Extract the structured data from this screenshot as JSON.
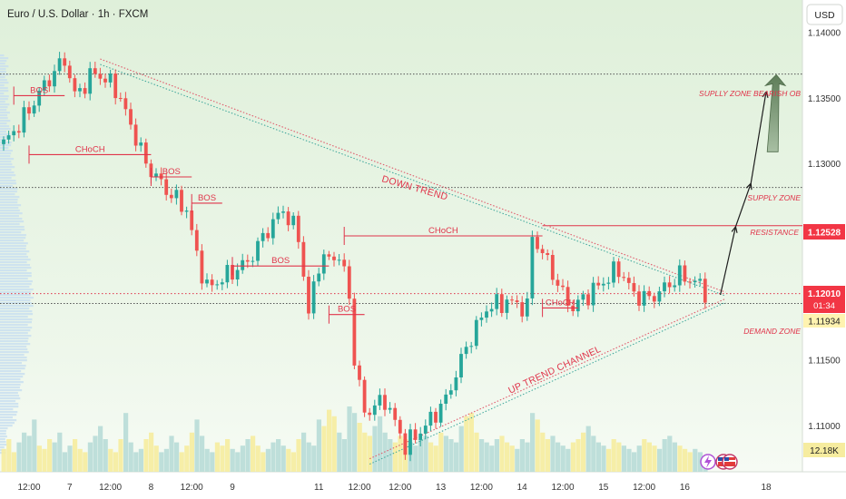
{
  "header": {
    "symbol_title": "Euro / U.S. Dollar · 1h · FXCM"
  },
  "axis": {
    "currency": "USD"
  },
  "colors": {
    "bg_top": "#e3f1df",
    "bg_bottom": "#f3f9f1",
    "up": "#26a69a",
    "down": "#ef5350",
    "structure": "#e0344a",
    "volume_warm": "#f6ec9f",
    "volume_cool": "#b8dcd7",
    "profile": "#c9dff0",
    "price_tag": "#f23645",
    "arrow_fill": "#6f8f6a"
  },
  "badges": {
    "current_price": "1.12010",
    "countdown": "01:34",
    "demand_price": "1.11934",
    "resistance_price": "1.12528",
    "volume": "12.18K"
  },
  "chart_data": {
    "type": "candlestick",
    "title": "Euro / U.S. Dollar · 1h · FXCM",
    "ylabel": "USD",
    "ylim": [
      1.1065,
      1.1425
    ],
    "y_ticks": [
      "1.14000",
      "1.13500",
      "1.13000",
      "1.12500",
      "1.12000",
      "1.11500",
      "1.11000"
    ],
    "y_tick_values": [
      1.14,
      1.135,
      1.13,
      1.125,
      1.12,
      1.115,
      1.11
    ],
    "x_ticks": [
      "12:00",
      "7",
      "12:00",
      "8",
      "12:00",
      "9",
      "11",
      "12:00",
      "12:00",
      "13",
      "12:00",
      "14",
      "12:00",
      "15",
      "12:00",
      "16",
      "18"
    ],
    "x_tick_index": [
      5,
      13,
      21,
      29,
      37,
      45,
      62,
      70,
      78,
      86,
      94,
      102,
      110,
      118,
      126,
      134,
      150
    ],
    "ohlc_anchors": [
      [
        0,
        1.1315
      ],
      [
        4,
        1.1335
      ],
      [
        8,
        1.136
      ],
      [
        12,
        1.138
      ],
      [
        14,
        1.1352
      ],
      [
        18,
        1.137
      ],
      [
        22,
        1.1358
      ],
      [
        26,
        1.132
      ],
      [
        28,
        1.13
      ],
      [
        32,
        1.128
      ],
      [
        36,
        1.1265
      ],
      [
        38,
        1.123
      ],
      [
        40,
        1.1205
      ],
      [
        44,
        1.1215
      ],
      [
        48,
        1.1225
      ],
      [
        52,
        1.125
      ],
      [
        55,
        1.1265
      ],
      [
        58,
        1.1245
      ],
      [
        60,
        1.1185
      ],
      [
        62,
        1.1225
      ],
      [
        66,
        1.123
      ],
      [
        68,
        1.12
      ],
      [
        69,
        1.115
      ],
      [
        71,
        1.111
      ],
      [
        75,
        1.112
      ],
      [
        79,
        1.1085
      ],
      [
        83,
        1.11
      ],
      [
        87,
        1.112
      ],
      [
        91,
        1.116
      ],
      [
        95,
        1.119
      ],
      [
        99,
        1.1195
      ],
      [
        103,
        1.119
      ],
      [
        104,
        1.1245
      ],
      [
        107,
        1.1225
      ],
      [
        110,
        1.12
      ],
      [
        112,
        1.119
      ],
      [
        114,
        1.1197
      ],
      [
        118,
        1.121
      ],
      [
        121,
        1.122
      ],
      [
        124,
        1.12
      ],
      [
        127,
        1.1197
      ],
      [
        130,
        1.1205
      ],
      [
        133,
        1.1215
      ],
      [
        136,
        1.121
      ],
      [
        138,
        1.1203
      ]
    ],
    "candle_count": 139,
    "structure_lines": [
      {
        "label": "BOS",
        "price": 1.1352,
        "from": 2,
        "to": 12
      },
      {
        "label": "CHoCH",
        "price": 1.1307,
        "from": 5,
        "to": 29
      },
      {
        "label": "BOS",
        "price": 1.129,
        "from": 29,
        "to": 37
      },
      {
        "label": "BOS",
        "price": 1.127,
        "from": 37,
        "to": 43
      },
      {
        "label": "BOS",
        "price": 1.1222,
        "from": 45,
        "to": 64
      },
      {
        "label": "BOS",
        "price": 1.1185,
        "from": 64,
        "to": 71
      },
      {
        "label": "CHoCH",
        "price": 1.1245,
        "from": 67,
        "to": 106
      },
      {
        "label": "CHoCH",
        "price": 1.119,
        "from": 106,
        "to": 113
      }
    ],
    "horizontal_levels": [
      {
        "label": "SUPLLY ZONE BEARISH OB",
        "price": 1.13685,
        "style": "dotted"
      },
      {
        "label": "SUPPLY ZONE",
        "price": 1.1282,
        "style": "dotted"
      },
      {
        "label": "RESISTANCE",
        "price": 1.12528,
        "style": "solid"
      },
      {
        "label": "DEMAND ZONE",
        "price": 1.11934,
        "style": "dotted"
      }
    ],
    "trendlines": [
      {
        "label": "DOWN TREND",
        "from": [
          19,
          1.138
        ],
        "to": [
          142,
          1.1202
        ]
      },
      {
        "label": "UP TREND CHANNEL",
        "from": [
          72,
          1.1075
        ],
        "to": [
          142,
          1.1197
        ]
      }
    ],
    "projection": [
      [
        141,
        1.12
      ],
      [
        144,
        1.1252
      ],
      [
        147,
        1.1285
      ],
      [
        150,
        1.1355
      ]
    ],
    "volume": [
      0.35,
      0.5,
      0.3,
      0.45,
      0.6,
      0.55,
      0.8,
      0.4,
      0.35,
      0.5,
      0.45,
      0.6,
      0.3,
      0.4,
      0.5,
      0.35,
      0.3,
      0.45,
      0.55,
      0.7,
      0.5,
      0.35,
      0.3,
      0.5,
      0.9,
      0.45,
      0.3,
      0.35,
      0.5,
      0.6,
      0.4,
      0.3,
      0.35,
      0.55,
      0.45,
      0.3,
      0.4,
      0.6,
      0.8,
      0.55,
      0.35,
      0.3,
      0.45,
      0.4,
      0.5,
      0.35,
      0.3,
      0.4,
      0.5,
      0.55,
      0.4,
      0.3,
      0.35,
      0.45,
      0.5,
      0.4,
      0.35,
      0.3,
      0.5,
      0.6,
      0.45,
      0.4,
      0.8,
      0.7,
      0.95,
      0.85,
      0.6,
      0.5,
      1.0,
      0.9,
      0.75,
      0.6,
      0.55,
      0.7,
      0.85,
      0.6,
      0.5,
      0.45,
      0.55,
      0.5,
      0.45,
      0.4,
      0.5,
      0.55,
      0.45,
      0.4,
      0.6,
      0.55,
      0.5,
      0.45,
      0.7,
      0.85,
      0.9,
      0.6,
      0.5,
      0.45,
      0.4,
      0.5,
      0.55,
      0.45,
      0.4,
      0.35,
      0.5,
      0.45,
      0.9,
      0.8,
      0.6,
      0.5,
      0.55,
      0.45,
      0.4,
      0.35,
      0.45,
      0.5,
      0.6,
      0.7,
      0.55,
      0.45,
      0.4,
      0.35,
      0.5,
      0.45,
      0.4,
      0.35,
      0.3,
      0.4,
      0.5,
      0.45,
      0.4,
      0.35,
      0.5,
      0.55,
      0.45,
      0.4,
      0.35,
      0.3,
      0.35,
      0.3,
      0.25
    ]
  },
  "annotations": {
    "down_trend": "DOWN TREND",
    "up_trend_channel": "UP TREND CHANNEL",
    "supply_zone_bearish_ob": "SUPLLY ZONE BEARISH OB",
    "supply_zone": "SUPPLY ZONE",
    "resistance": "RESISTANCE",
    "demand_zone": "DEMAND ZONE"
  },
  "icons": [
    "bolt-icon",
    "us-flag-icon",
    "us-flag-icon"
  ]
}
